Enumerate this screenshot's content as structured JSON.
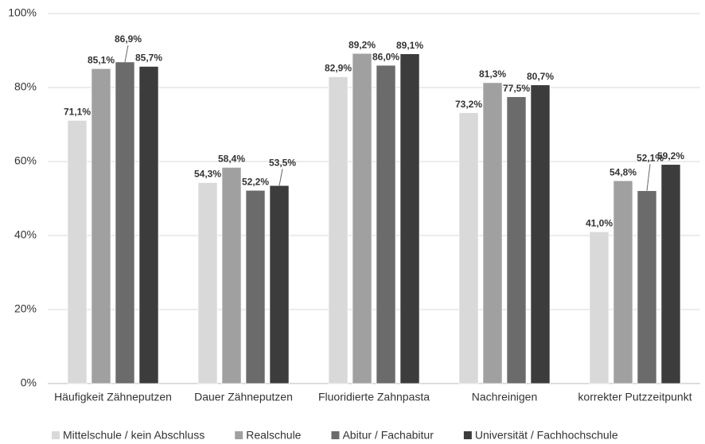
{
  "chart_data": {
    "type": "bar",
    "categories": [
      "Häufigkeit Zähneputzen",
      "Dauer Zähneputzen",
      "Fluoridierte Zahnpasta",
      "Nachreinigen",
      "korrekter Putzzeitpunkt"
    ],
    "series": [
      {
        "name": "Mittelschule / kein Abschluss",
        "color": "#d9d9d9",
        "values": [
          71.1,
          54.3,
          82.9,
          73.2,
          41.0
        ],
        "value_labels": [
          "71,1%",
          "54,3%",
          "82,9%",
          "73,2%",
          "41,0%"
        ]
      },
      {
        "name": "Realschule",
        "color": "#a0a0a0",
        "values": [
          85.1,
          58.4,
          89.2,
          81.3,
          54.8
        ],
        "value_labels": [
          "85,1%",
          "58,4%",
          "89,2%",
          "81,3%",
          "54,8%"
        ]
      },
      {
        "name": "Abitur / Fachabitur",
        "color": "#6b6b6b",
        "values": [
          86.9,
          52.2,
          86.0,
          77.5,
          52.1
        ],
        "value_labels": [
          "86,9%",
          "52,2%",
          "86,0%",
          "77,5%",
          "52,1%"
        ]
      },
      {
        "name": "Universität / Fachhochschule",
        "color": "#3c3c3c",
        "values": [
          85.7,
          53.5,
          89.1,
          80.7,
          59.2
        ],
        "value_labels": [
          "85,7%",
          "53,5%",
          "89,1%",
          "80,7%",
          "59,2%"
        ]
      }
    ],
    "ylim": [
      0,
      100
    ],
    "yticks": [
      {
        "value": 0,
        "label": "0%"
      },
      {
        "value": 20,
        "label": "20%"
      },
      {
        "value": 40,
        "label": "40%"
      },
      {
        "value": 60,
        "label": "60%"
      },
      {
        "value": 80,
        "label": "80%"
      },
      {
        "value": 100,
        "label": "100%"
      }
    ],
    "grid": true,
    "legend": "bottom"
  }
}
